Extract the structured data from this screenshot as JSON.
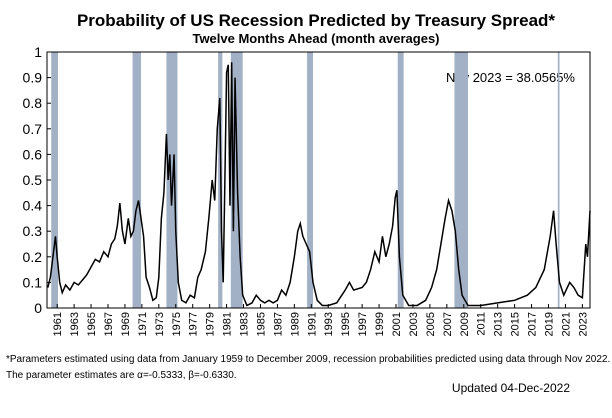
{
  "chart_data": {
    "type": "line",
    "title": "Probability of US Recession Predicted by Treasury Spread*",
    "subtitle": "Twelve Months Ahead (month averages)",
    "annotation": "Nov 2023 = 38.0565%",
    "footnote_lines": [
      "*Parameters estimated using data from January 1959 to December 2009, recession probabilities predicted using data through Nov 2022.",
      "The parameter estimates are α=-0.5333, β=-0.6330."
    ],
    "updated": "Updated 04-Dec-2022",
    "xlim": [
      1959.8,
      2023.9
    ],
    "ylim": [
      0,
      1
    ],
    "xticks": [
      1961,
      1963,
      1965,
      1967,
      1969,
      1971,
      1973,
      1975,
      1977,
      1979,
      1981,
      1983,
      1985,
      1987,
      1989,
      1991,
      1993,
      1995,
      1997,
      1999,
      2001,
      2003,
      2005,
      2007,
      2009,
      2011,
      2013,
      2015,
      2017,
      2019,
      2021,
      2023
    ],
    "yticks": [
      0,
      0.1,
      0.2,
      0.3,
      0.4,
      0.5,
      0.6,
      0.7,
      0.8,
      0.9,
      1
    ],
    "recession_color": "#a3b1c6",
    "recessions": [
      [
        1960.3,
        1961.1
      ],
      [
        1969.9,
        1970.9
      ],
      [
        1973.9,
        1975.2
      ],
      [
        1980.0,
        1980.5
      ],
      [
        1981.5,
        1982.9
      ],
      [
        1990.5,
        1991.2
      ],
      [
        2001.2,
        2001.9
      ],
      [
        2007.9,
        2009.5
      ],
      [
        2020.1,
        2020.3
      ]
    ],
    "series": [
      {
        "color": "#000000",
        "x": [
          1959.9,
          1960.2,
          1960.5,
          1960.8,
          1961.0,
          1961.3,
          1961.6,
          1962.0,
          1962.5,
          1963.0,
          1963.5,
          1964.0,
          1964.5,
          1965.0,
          1965.5,
          1966.0,
          1966.5,
          1967.0,
          1967.4,
          1967.8,
          1968.1,
          1968.4,
          1968.7,
          1969.0,
          1969.4,
          1969.7,
          1970.0,
          1970.3,
          1970.6,
          1970.9,
          1971.2,
          1971.5,
          1971.9,
          1972.3,
          1972.7,
          1973.0,
          1973.3,
          1973.6,
          1973.9,
          1974.1,
          1974.3,
          1974.5,
          1974.8,
          1975.0,
          1975.3,
          1975.7,
          1976.2,
          1976.7,
          1977.2,
          1977.6,
          1978.0,
          1978.5,
          1978.9,
          1979.3,
          1979.6,
          1979.9,
          1980.2,
          1980.4,
          1980.6,
          1980.8,
          1981.0,
          1981.2,
          1981.4,
          1981.6,
          1981.8,
          1982.0,
          1982.3,
          1982.6,
          1982.9,
          1983.4,
          1984.0,
          1984.5,
          1985.0,
          1985.5,
          1986.0,
          1986.5,
          1987.0,
          1987.5,
          1988.0,
          1988.5,
          1989.0,
          1989.4,
          1989.7,
          1990.0,
          1990.4,
          1990.8,
          1991.2,
          1991.7,
          1992.3,
          1993.0,
          1994.0,
          1995.0,
          1995.5,
          1996.0,
          1997.0,
          1997.5,
          1998.0,
          1998.5,
          1999.0,
          1999.4,
          1999.8,
          2000.2,
          2000.6,
          2000.9,
          2001.1,
          2001.4,
          2001.8,
          2002.5,
          2003.5,
          2004.5,
          2005.2,
          2005.8,
          2006.3,
          2006.8,
          2007.2,
          2007.6,
          2008.0,
          2008.4,
          2008.8,
          2009.5,
          2011.0,
          2013.0,
          2015.0,
          2016.5,
          2017.5,
          2018.5,
          2019.2,
          2019.6,
          2019.9,
          2020.3,
          2020.8,
          2021.5,
          2022.0,
          2022.5,
          2023.0,
          2023.4,
          2023.6,
          2023.9
        ],
        "values": [
          0.08,
          0.12,
          0.2,
          0.28,
          0.2,
          0.1,
          0.06,
          0.09,
          0.07,
          0.1,
          0.09,
          0.11,
          0.13,
          0.16,
          0.19,
          0.18,
          0.22,
          0.2,
          0.25,
          0.27,
          0.32,
          0.41,
          0.3,
          0.25,
          0.35,
          0.28,
          0.3,
          0.38,
          0.42,
          0.35,
          0.28,
          0.12,
          0.08,
          0.03,
          0.04,
          0.12,
          0.35,
          0.45,
          0.68,
          0.5,
          0.6,
          0.4,
          0.6,
          0.3,
          0.1,
          0.03,
          0.02,
          0.05,
          0.04,
          0.12,
          0.15,
          0.22,
          0.35,
          0.5,
          0.42,
          0.7,
          0.82,
          0.3,
          0.1,
          0.5,
          0.92,
          0.95,
          0.4,
          0.96,
          0.3,
          0.9,
          0.45,
          0.2,
          0.05,
          0.01,
          0.02,
          0.05,
          0.03,
          0.02,
          0.03,
          0.02,
          0.03,
          0.07,
          0.05,
          0.1,
          0.2,
          0.3,
          0.33,
          0.28,
          0.25,
          0.22,
          0.1,
          0.03,
          0.01,
          0.01,
          0.02,
          0.07,
          0.1,
          0.07,
          0.08,
          0.1,
          0.15,
          0.22,
          0.18,
          0.28,
          0.2,
          0.25,
          0.32,
          0.43,
          0.46,
          0.2,
          0.05,
          0.01,
          0.01,
          0.03,
          0.08,
          0.15,
          0.25,
          0.35,
          0.42,
          0.38,
          0.3,
          0.15,
          0.05,
          0.01,
          0.01,
          0.02,
          0.03,
          0.05,
          0.08,
          0.15,
          0.28,
          0.38,
          0.25,
          0.1,
          0.05,
          0.1,
          0.08,
          0.05,
          0.04,
          0.25,
          0.2,
          0.38
        ]
      }
    ]
  }
}
